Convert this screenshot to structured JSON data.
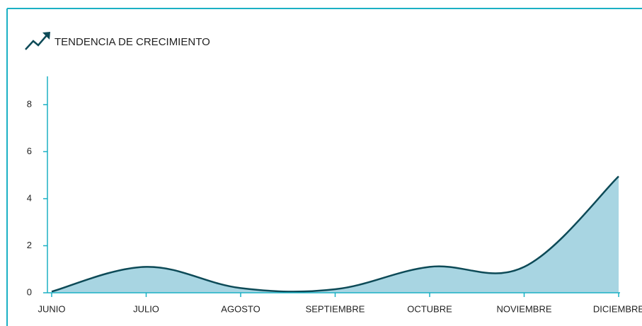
{
  "chart_data": {
    "type": "area",
    "title": "TENDENCIA DE CRECIMIENTO",
    "categories": [
      "JUNIO",
      "JULIO",
      "AGOSTO",
      "SEPTIEMBRE",
      "OCTUBRE",
      "NOVIEMBRE",
      "DICIEMBRE"
    ],
    "values": [
      0.05,
      1.1,
      0.2,
      0.15,
      1.1,
      1.1,
      4.95
    ],
    "color": "#0d4a57",
    "fill": "#a8d5e2",
    "ylim": [
      0,
      9.2
    ],
    "yticks": [
      0,
      2,
      4,
      6,
      8
    ]
  }
}
